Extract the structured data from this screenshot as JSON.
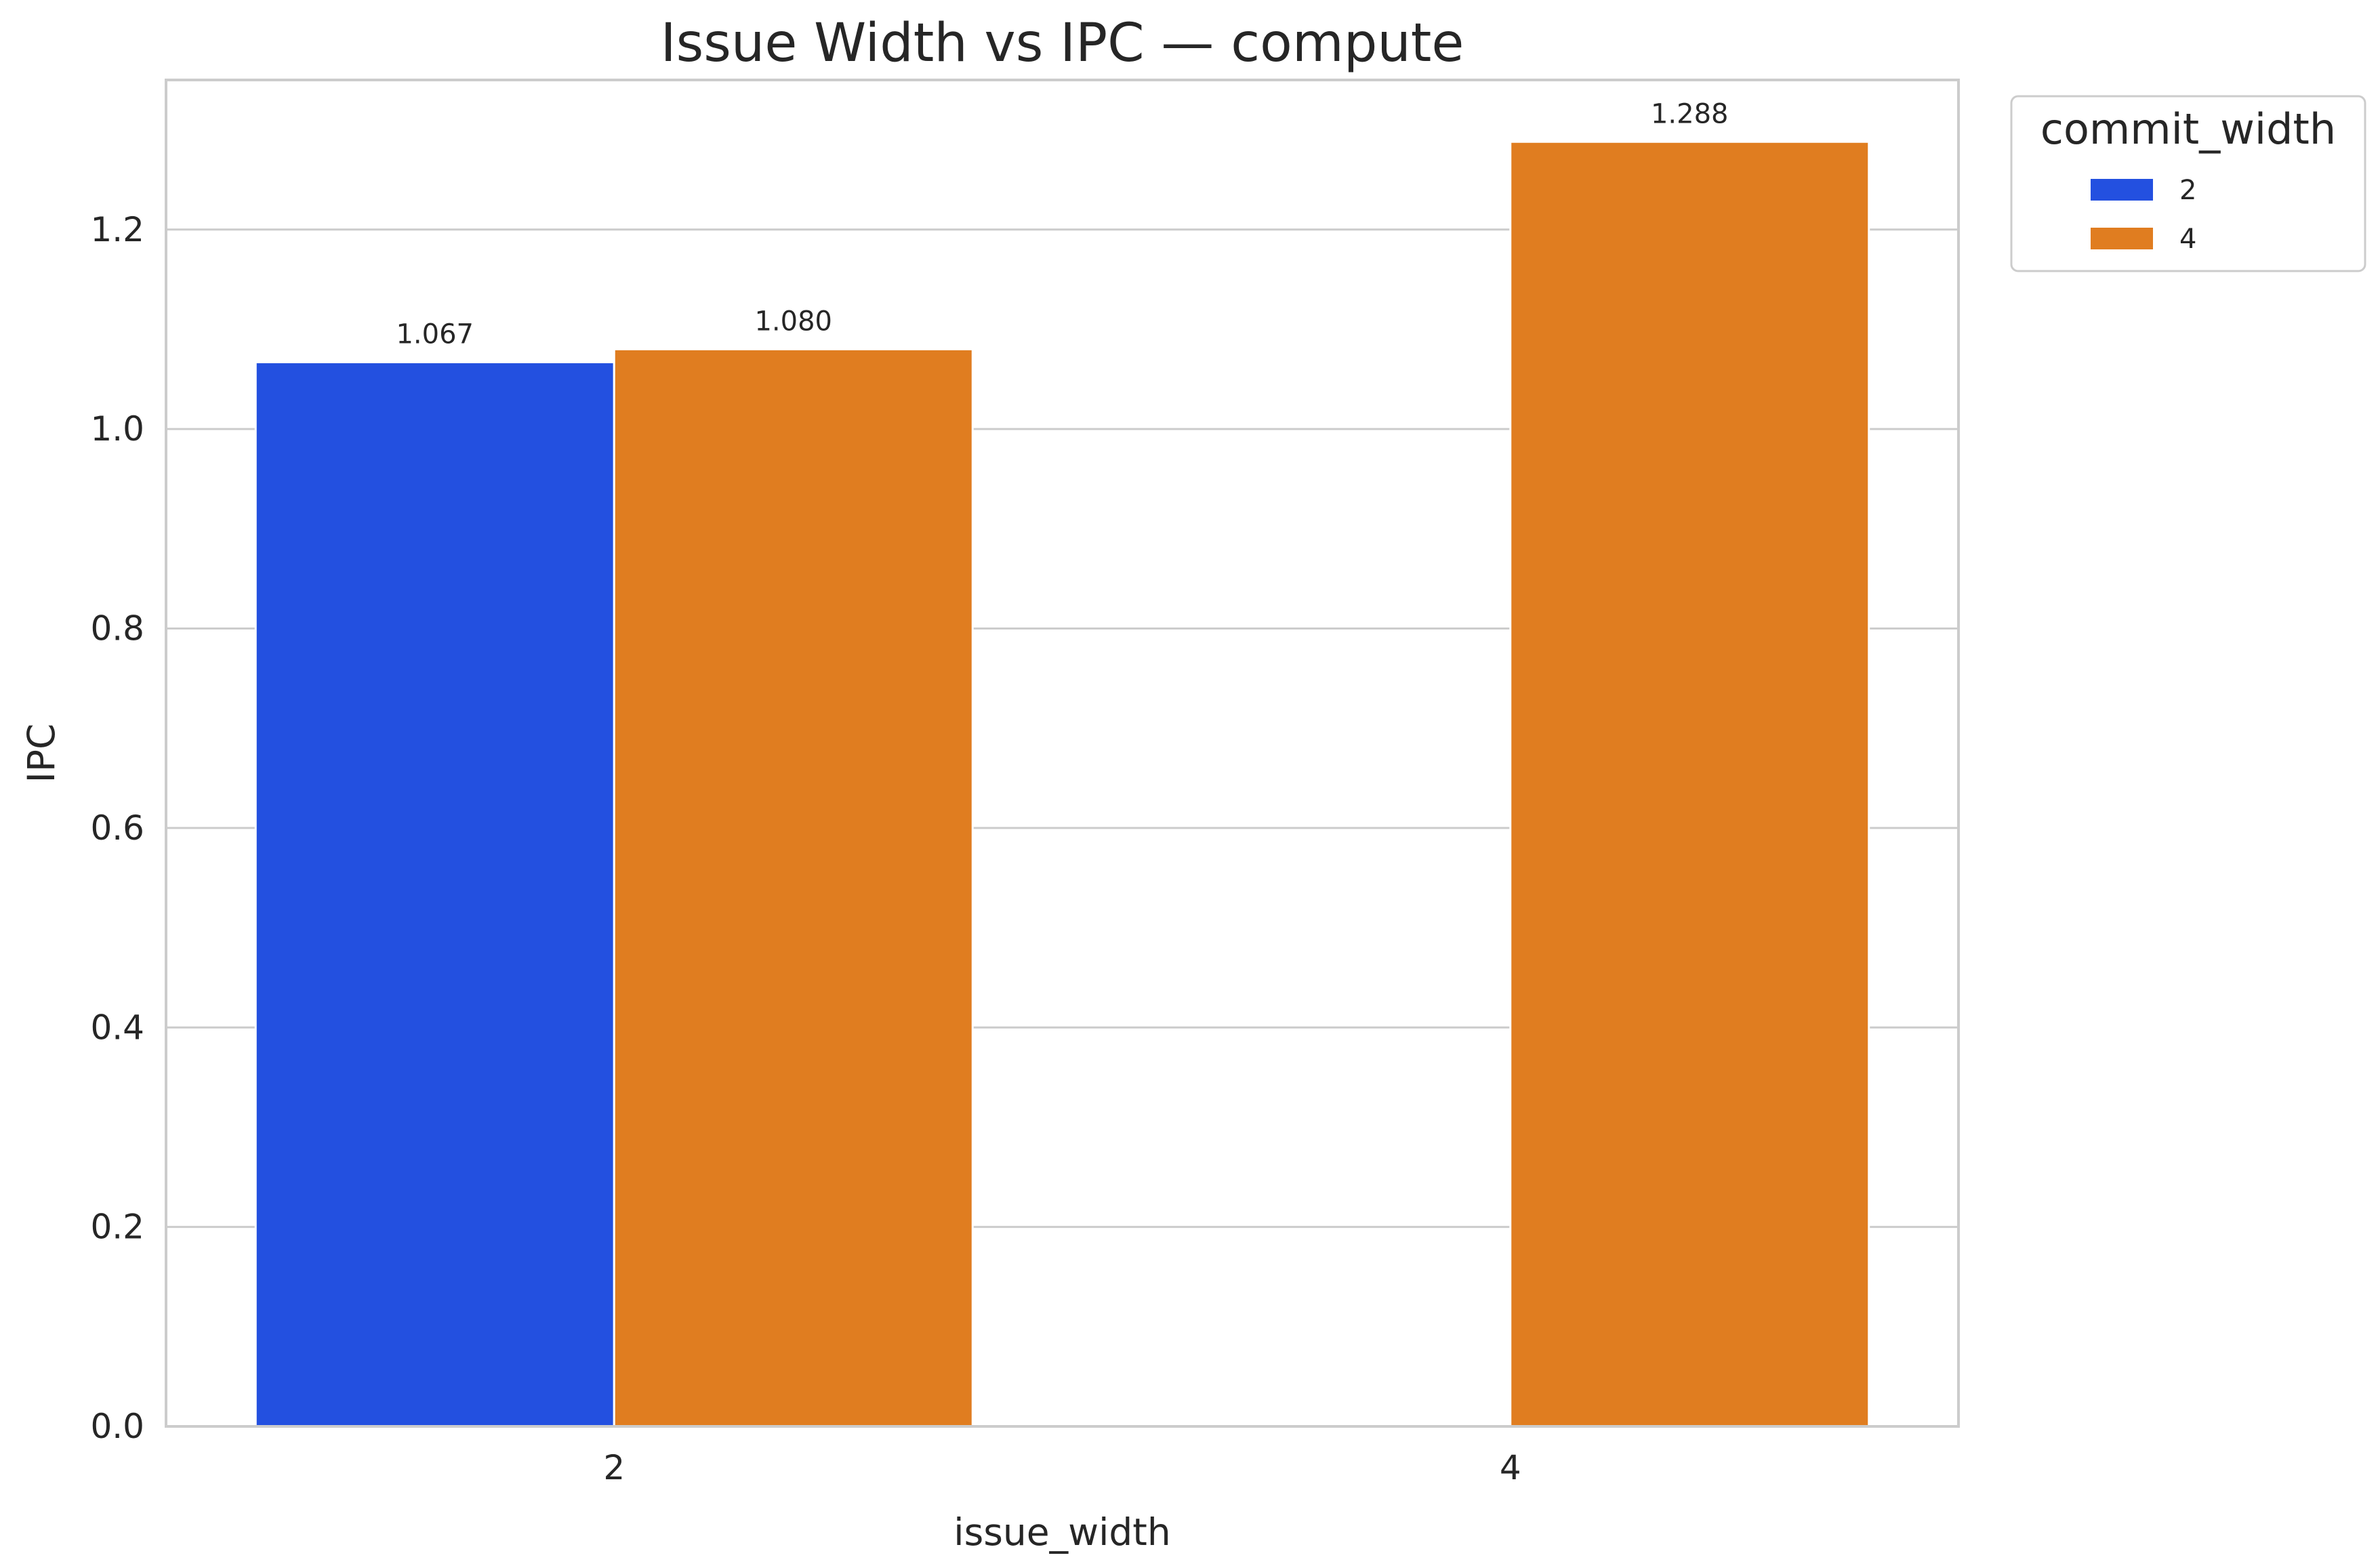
{
  "chart_data": {
    "type": "bar",
    "title": "Issue Width vs IPC — compute",
    "xlabel": "issue_width",
    "ylabel": "IPC",
    "categories": [
      "2",
      "4"
    ],
    "series": [
      {
        "name": "2",
        "color": "#2350e0",
        "values": [
          1.067,
          null
        ],
        "labels": [
          "1.067",
          ""
        ]
      },
      {
        "name": "4",
        "color": "#e07d20",
        "values": [
          1.08,
          1.288
        ],
        "labels": [
          "1.080",
          "1.288"
        ]
      }
    ],
    "ylim": [
      0,
      1.35
    ],
    "yticks": [
      0.0,
      0.2,
      0.4,
      0.6,
      0.8,
      1.0,
      1.2
    ],
    "ytick_labels": [
      "0.0",
      "0.2",
      "0.4",
      "0.6",
      "0.8",
      "1.0",
      "1.2"
    ],
    "grid": "y",
    "legend": {
      "title": "commit_width",
      "placement": "outside-top-right"
    }
  }
}
